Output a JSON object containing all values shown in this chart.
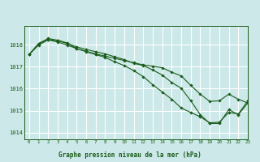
{
  "title": "Graphe pression niveau de la mer (hPa)",
  "bg_color": "#cce8e8",
  "grid_color": "#ffffff",
  "line_color": "#1a5c1a",
  "marker_color": "#1a5c1a",
  "xlim": [
    -0.5,
    23
  ],
  "ylim": [
    1013.7,
    1018.85
  ],
  "yticks": [
    1014,
    1015,
    1016,
    1017,
    1018
  ],
  "xticks": [
    0,
    1,
    2,
    3,
    4,
    5,
    6,
    7,
    8,
    9,
    10,
    11,
    12,
    13,
    14,
    15,
    16,
    17,
    18,
    19,
    20,
    21,
    22,
    23
  ],
  "series": [
    [
      1017.55,
      1017.98,
      1018.22,
      1018.18,
      1018.05,
      1017.9,
      1017.78,
      1017.68,
      1017.58,
      1017.45,
      1017.32,
      1017.15,
      1017.05,
      1016.85,
      1016.62,
      1016.28,
      1016.02,
      1015.45,
      1014.82,
      1014.42,
      1014.42,
      1015.05,
      1014.82,
      1015.35
    ],
    [
      1017.55,
      1018.05,
      1018.28,
      1018.2,
      1018.08,
      1017.82,
      1017.68,
      1017.55,
      1017.42,
      1017.22,
      1017.05,
      1016.82,
      1016.55,
      1016.18,
      1015.85,
      1015.52,
      1015.12,
      1014.92,
      1014.72,
      1014.45,
      1014.48,
      1014.92,
      1014.85,
      1015.45
    ],
    [
      1017.55,
      1018.05,
      1018.22,
      1018.12,
      1017.98,
      1017.82,
      1017.7,
      1017.58,
      1017.48,
      1017.38,
      1017.28,
      1017.18,
      1017.08,
      1017.02,
      1016.95,
      1016.75,
      1016.58,
      1016.15,
      1015.75,
      1015.42,
      1015.45,
      1015.75,
      1015.52,
      1015.35
    ]
  ]
}
